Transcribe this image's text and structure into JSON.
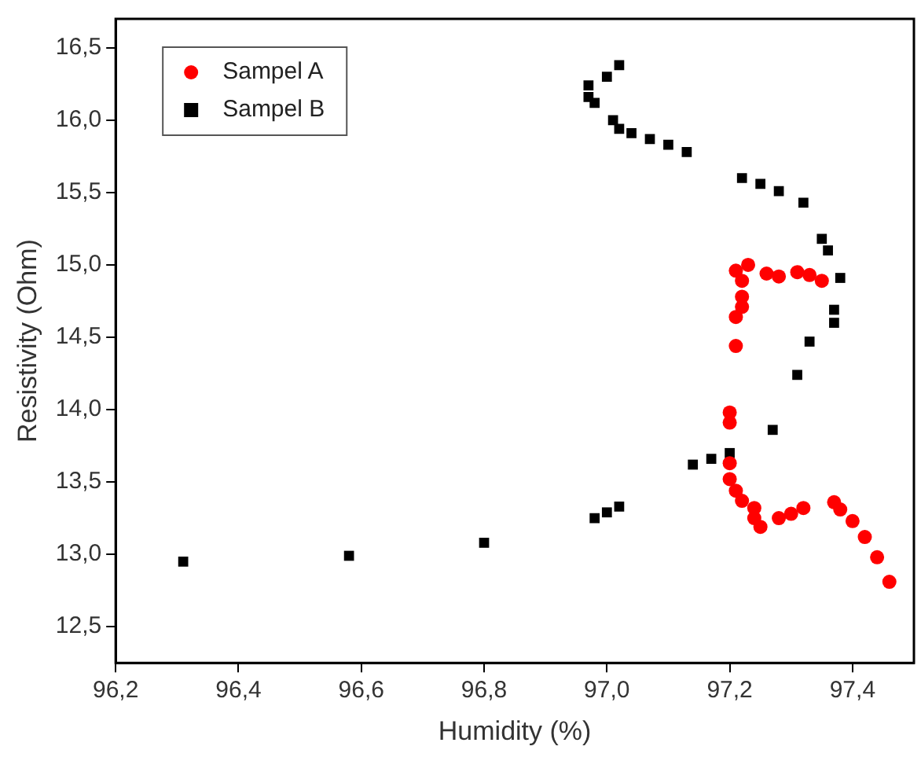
{
  "chart_data": {
    "type": "scatter",
    "xlabel": "Humidity (%)",
    "ylabel": "Resistivity (Ohm)",
    "xlim": [
      96.2,
      97.5
    ],
    "xticks": [
      {
        "value": 96.2,
        "label": "96,2"
      },
      {
        "value": 96.4,
        "label": "96,4"
      },
      {
        "value": 96.6,
        "label": "96,6"
      },
      {
        "value": 96.8,
        "label": "96,8"
      },
      {
        "value": 97.0,
        "label": "97,0"
      },
      {
        "value": 97.2,
        "label": "97,2"
      },
      {
        "value": 97.4,
        "label": "97,4"
      }
    ],
    "ylim": [
      12.25,
      16.7
    ],
    "yticks": [
      {
        "value": 12.5,
        "label": "12,5"
      },
      {
        "value": 13.0,
        "label": "13,0"
      },
      {
        "value": 13.5,
        "label": "13,5"
      },
      {
        "value": 14.0,
        "label": "14,0"
      },
      {
        "value": 14.5,
        "label": "14,5"
      },
      {
        "value": 15.0,
        "label": "15,0"
      },
      {
        "value": 15.5,
        "label": "15,5"
      },
      {
        "value": 16.0,
        "label": "16,0"
      },
      {
        "value": 16.5,
        "label": "16,5"
      }
    ],
    "grid": false,
    "legend": "top left",
    "series": [
      {
        "name": "Sampel A",
        "color": "#ff0000",
        "marker": "circle",
        "x": [
          97.21,
          97.23,
          97.26,
          97.28,
          97.31,
          97.33,
          97.35,
          97.22,
          97.22,
          97.22,
          97.21,
          97.21,
          97.2,
          97.2,
          97.2,
          97.2,
          97.21,
          97.22,
          97.24,
          97.24,
          97.25,
          97.28,
          97.3,
          97.32,
          97.37,
          97.38,
          97.4,
          97.42,
          97.44,
          97.46
        ],
        "values": [
          14.96,
          15.0,
          14.94,
          14.92,
          14.95,
          14.93,
          14.89,
          14.89,
          14.78,
          14.71,
          14.64,
          14.44,
          13.98,
          13.91,
          13.63,
          13.52,
          13.44,
          13.37,
          13.32,
          13.25,
          13.19,
          13.25,
          13.28,
          13.32,
          13.36,
          13.31,
          13.23,
          13.12,
          12.98,
          12.81
        ]
      },
      {
        "name": "Sampel B",
        "color": "#000000",
        "marker": "square",
        "x": [
          97.02,
          97.0,
          96.97,
          96.97,
          96.98,
          97.01,
          97.02,
          97.04,
          97.07,
          97.1,
          97.13,
          97.22,
          97.25,
          97.28,
          97.32,
          97.35,
          97.36,
          97.38,
          97.37,
          97.37,
          97.33,
          97.31,
          97.27,
          97.2,
          97.17,
          97.14,
          97.02,
          97.0,
          96.98,
          96.8,
          96.58,
          96.31
        ],
        "values": [
          16.38,
          16.3,
          16.24,
          16.16,
          16.12,
          16.0,
          15.94,
          15.91,
          15.87,
          15.83,
          15.78,
          15.6,
          15.56,
          15.51,
          15.43,
          15.18,
          15.1,
          14.91,
          14.69,
          14.6,
          14.47,
          14.24,
          13.86,
          13.7,
          13.66,
          13.62,
          13.33,
          13.29,
          13.25,
          13.08,
          12.99,
          12.95
        ]
      }
    ]
  }
}
